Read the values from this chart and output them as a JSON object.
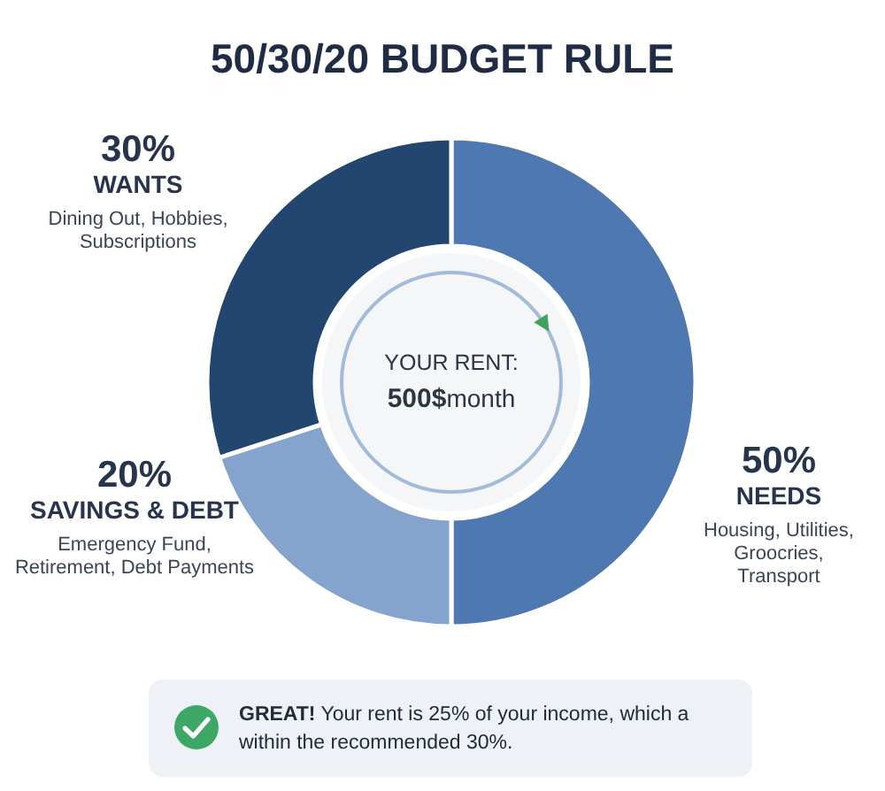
{
  "chart_data": {
    "type": "donut",
    "title": "50/30/20 BUDGET RULE",
    "categories": [
      "NEEDS",
      "SAVINGS & DEBT",
      "WANTS"
    ],
    "values": [
      50,
      20,
      30
    ],
    "colors": [
      "#4e79b0",
      "#84a4cd",
      "#22466f"
    ],
    "value_labels": [
      "50%",
      "20%",
      "30%"
    ],
    "annotations": [
      "Housing, Utilities, Groocries, Transport",
      "Emergency Fund, Retirement, Debt Payments",
      "Dining Out, Hobbies, Subscriptions",
      "YOUR RENT:",
      "500$month",
      "GREAT! Your rent is 25% of your income, which a within the recommended 30%."
    ]
  }
}
